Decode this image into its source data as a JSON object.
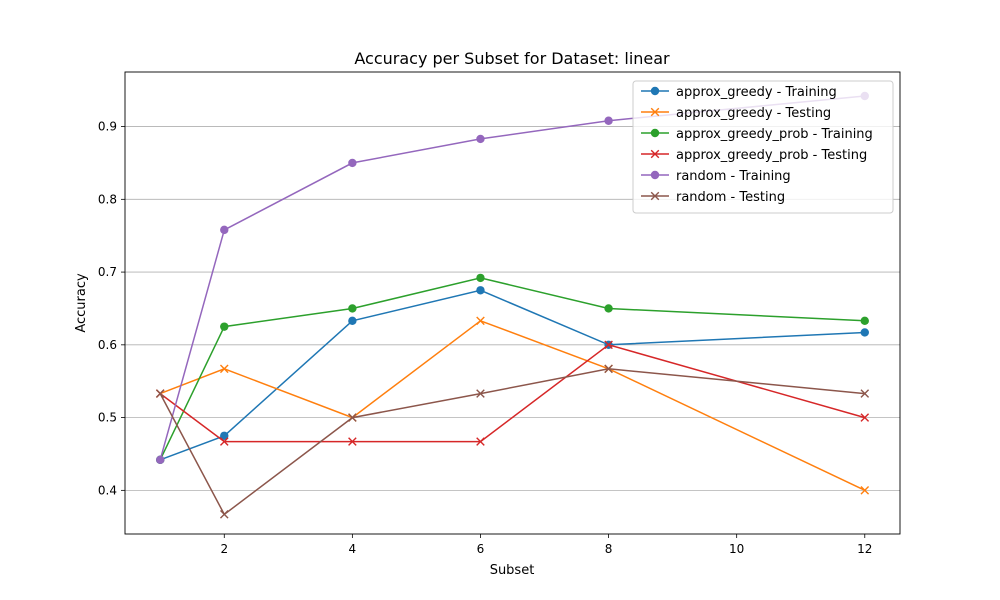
{
  "chart_data": {
    "type": "line",
    "title": "Accuracy per Subset for Dataset: linear",
    "xlabel": "Subset",
    "ylabel": "Accuracy",
    "xlim": [
      0.45,
      12.55
    ],
    "ylim": [
      0.34,
      0.975
    ],
    "xticks": [
      2,
      4,
      6,
      8,
      10,
      12
    ],
    "yticks": [
      0.4,
      0.5,
      0.6,
      0.7,
      0.8,
      0.9
    ],
    "grid": "horizontal",
    "legend_position": "top-right",
    "x": [
      1,
      2,
      4,
      6,
      8,
      12
    ],
    "series": [
      {
        "name": "approx_greedy - Training",
        "color": "#1f77b4",
        "marker": "circle",
        "values": [
          0.442,
          0.475,
          0.633,
          0.675,
          0.6,
          0.617
        ]
      },
      {
        "name": "approx_greedy - Testing",
        "color": "#ff7f0e",
        "marker": "x",
        "values": [
          0.533,
          0.567,
          0.5,
          0.633,
          0.567,
          0.4
        ]
      },
      {
        "name": "approx_greedy_prob - Training",
        "color": "#2ca02c",
        "marker": "circle",
        "values": [
          0.442,
          0.625,
          0.65,
          0.692,
          0.65,
          0.633
        ]
      },
      {
        "name": "approx_greedy_prob - Testing",
        "color": "#d62728",
        "marker": "x",
        "values": [
          0.533,
          0.467,
          0.467,
          0.467,
          0.6,
          0.5
        ]
      },
      {
        "name": "random - Training",
        "color": "#9467bd",
        "marker": "circle",
        "values": [
          0.442,
          0.758,
          0.85,
          0.883,
          0.908,
          0.942
        ]
      },
      {
        "name": "random - Testing",
        "color": "#8c564b",
        "marker": "x",
        "values": [
          0.533,
          0.367,
          0.5,
          0.533,
          0.567,
          0.533
        ]
      }
    ]
  }
}
